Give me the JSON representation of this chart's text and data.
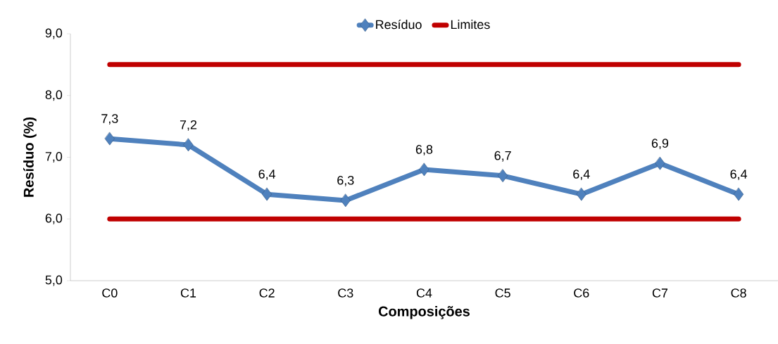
{
  "chart_data": {
    "type": "line",
    "categories": [
      "C0",
      "C1",
      "C2",
      "C3",
      "C4",
      "C5",
      "C6",
      "C7",
      "C8"
    ],
    "series": [
      {
        "name": "Resíduo",
        "color": "#4f81bd",
        "marker": "diamond",
        "values": [
          7.3,
          7.2,
          6.4,
          6.3,
          6.8,
          6.7,
          6.4,
          6.9,
          6.4
        ],
        "value_labels": [
          "7,3",
          "7,2",
          "6,4",
          "6,3",
          "6,8",
          "6,7",
          "6,4",
          "6,9",
          "6,4"
        ]
      },
      {
        "name": "Limites",
        "color": "#c00000",
        "marker": "none",
        "values": [
          8.5,
          8.5,
          8.5,
          8.5,
          8.5,
          8.5,
          8.5,
          8.5,
          8.5
        ]
      },
      {
        "color": "#c00000",
        "marker": "none",
        "values": [
          6.0,
          6.0,
          6.0,
          6.0,
          6.0,
          6.0,
          6.0,
          6.0,
          6.0
        ]
      }
    ],
    "xlabel": "Composições",
    "ylabel": "Resíduo (%)",
    "ylim": [
      5,
      9
    ],
    "yticks": [
      {
        "value": 5,
        "label": "5,0"
      },
      {
        "value": 6,
        "label": "6,0"
      },
      {
        "value": 7,
        "label": "7,0"
      },
      {
        "value": 8,
        "label": "8,0"
      },
      {
        "value": 9,
        "label": "9,0"
      }
    ],
    "legend": "top",
    "grid": false
  }
}
